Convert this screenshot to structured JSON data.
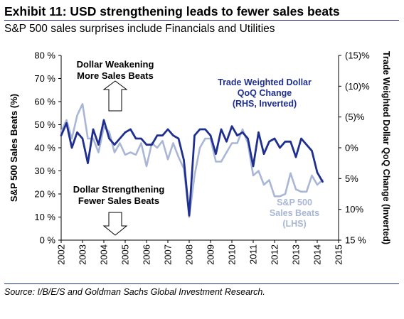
{
  "header": {
    "title": "Exhibit 11: USD strengthening leads to fewer sales beats",
    "subtitle": "S&P 500 sales surprises include Financials and Utilities"
  },
  "footer": {
    "source": "Source: I/B/E/S and Goldman Sachs Global Investment Research."
  },
  "annotations": {
    "weakening": [
      "Dollar Weakening",
      "More Sales Beats"
    ],
    "strengthening": [
      "Dollar Strengthening",
      "Fewer Sales Beats"
    ],
    "trade_label": [
      "Trade Weighted Dollar",
      "QoQ Change",
      "(RHS, Inverted)"
    ],
    "sp_label": [
      "S&P 500",
      "Sales Beats",
      "(LHS)"
    ]
  },
  "colors": {
    "trade_series": "#1f2f8f",
    "sp_series": "#a9b6d6",
    "axis": "#000000",
    "rule": "#1f2f7a"
  },
  "chart_data": {
    "type": "line",
    "ylabel": "S&P 500 Sales Beats (%)",
    "y2label": "Trade Weighted Dollar QoQ Change (Inverted)",
    "xlim": [
      2002,
      2015
    ],
    "ylim": [
      0,
      80
    ],
    "y2lim": [
      15,
      -15
    ],
    "x_ticks": [
      "2002",
      "2003",
      "2004",
      "2005",
      "2006",
      "2007",
      "2008",
      "2009",
      "2010",
      "2011",
      "2012",
      "2013",
      "2014",
      "2015"
    ],
    "y_ticks": [
      "0 %",
      "10 %",
      "20 %",
      "30 %",
      "40 %",
      "50 %",
      "60 %",
      "70 %",
      "80 %"
    ],
    "y2_ticks": [
      "15 %",
      "10%",
      "5%",
      "0%",
      "(5)%",
      "(10)%",
      "(15)%"
    ],
    "y2_tick_values": [
      15,
      10,
      5,
      0,
      -5,
      -10,
      -15
    ],
    "series": [
      {
        "name": "S&P 500 Sales Beats",
        "axis": "left",
        "x": [
          2002.0,
          2002.25,
          2002.5,
          2002.75,
          2003.0,
          2003.25,
          2003.5,
          2003.75,
          2004.0,
          2004.25,
          2004.5,
          2004.75,
          2005.0,
          2005.25,
          2005.5,
          2005.75,
          2006.0,
          2006.25,
          2006.5,
          2006.75,
          2007.0,
          2007.25,
          2007.5,
          2007.75,
          2008.0,
          2008.25,
          2008.5,
          2008.75,
          2009.0,
          2009.25,
          2009.5,
          2009.75,
          2010.0,
          2010.25,
          2010.5,
          2010.75,
          2011.0,
          2011.25,
          2011.5,
          2011.75,
          2012.0,
          2012.25,
          2012.5,
          2012.75,
          2013.0,
          2013.25,
          2013.5,
          2013.75,
          2014.0,
          2014.25
        ],
        "values": [
          47,
          52,
          44,
          54,
          59,
          44,
          44,
          38,
          49,
          47,
          38,
          42,
          37,
          38,
          37,
          42,
          32,
          42,
          40,
          43,
          35,
          42,
          36,
          31,
          10,
          28,
          40,
          44,
          44,
          34,
          34,
          38,
          42,
          42,
          48,
          42,
          28,
          30,
          24,
          26,
          19,
          19,
          20,
          29,
          22,
          21,
          21,
          28,
          24,
          26
        ]
      },
      {
        "name": "Trade Weighted Dollar QoQ Change",
        "axis": "right",
        "x": [
          2002.0,
          2002.25,
          2002.5,
          2002.75,
          2003.0,
          2003.25,
          2003.5,
          2003.75,
          2004.0,
          2004.25,
          2004.5,
          2004.75,
          2005.0,
          2005.25,
          2005.5,
          2005.75,
          2006.0,
          2006.25,
          2006.5,
          2006.75,
          2007.0,
          2007.25,
          2007.5,
          2007.75,
          2008.0,
          2008.25,
          2008.5,
          2008.75,
          2009.0,
          2009.25,
          2009.5,
          2009.75,
          2010.0,
          2010.25,
          2010.5,
          2010.75,
          2011.0,
          2011.25,
          2011.5,
          2011.75,
          2012.0,
          2012.25,
          2012.5,
          2012.75,
          2013.0,
          2013.25,
          2013.5,
          2013.75,
          2014.0,
          2014.25
        ],
        "values": [
          -2,
          -4,
          0,
          -2.5,
          -1.5,
          2.5,
          -3,
          -0.5,
          -4.5,
          -1.5,
          -0.5,
          -1.5,
          -2.5,
          -3,
          -1.5,
          -1.5,
          -0.5,
          -0.5,
          -2,
          -2,
          -3,
          -2,
          -1.5,
          2,
          11,
          -2,
          -3,
          -3,
          -2,
          1,
          -3,
          -1,
          -3.5,
          -2,
          -2.5,
          -1.5,
          3,
          -2.5,
          1,
          -1,
          -1.5,
          0,
          -1,
          -1,
          1.5,
          -1.5,
          -0.5,
          0.5,
          4,
          5.5
        ]
      }
    ]
  }
}
